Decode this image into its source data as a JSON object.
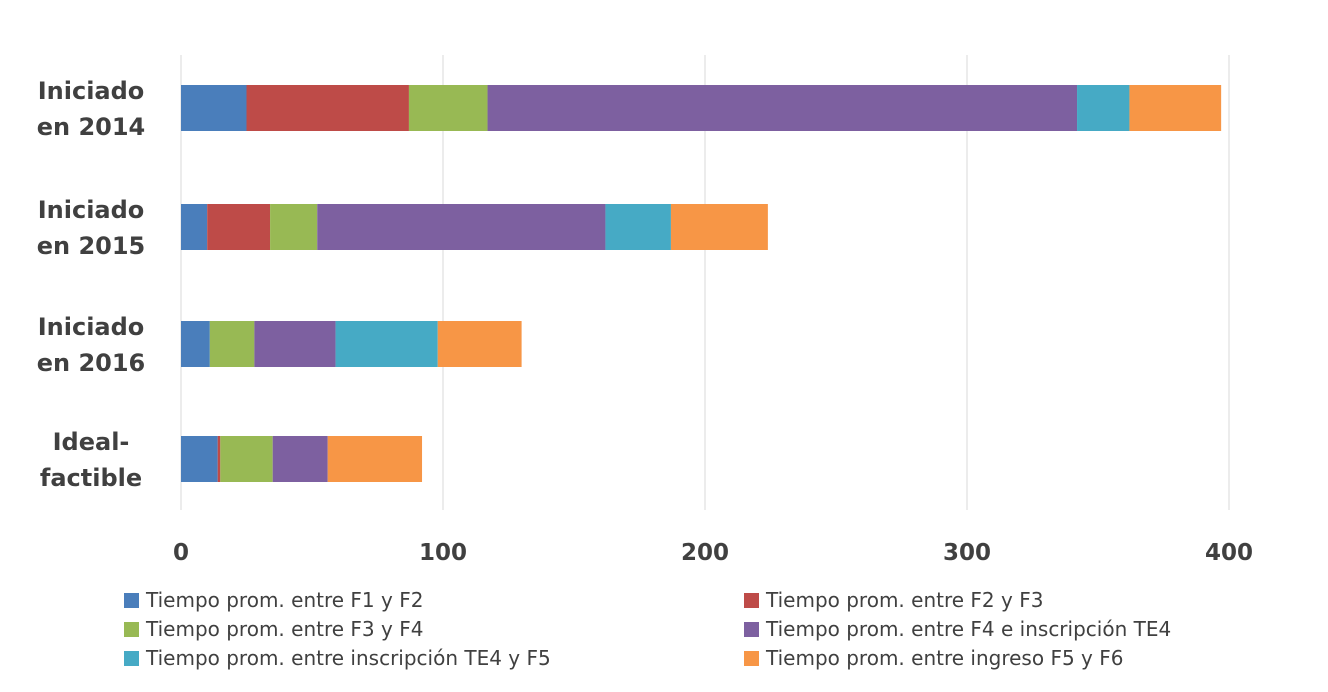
{
  "chart_data": {
    "type": "bar",
    "orientation": "horizontal",
    "stacked": true,
    "title": "",
    "xlabel": "",
    "ylabel": "",
    "xlim": [
      0,
      400
    ],
    "x_ticks": [
      "0",
      "100",
      "200",
      "300",
      "400"
    ],
    "grid": "vertical",
    "legend_position": "bottom",
    "categories": [
      [
        "Iniciado",
        "en 2014"
      ],
      [
        "Iniciado",
        "en 2015"
      ],
      [
        "Iniciado",
        "en 2016"
      ],
      [
        "Ideal-",
        "factible"
      ]
    ],
    "series": [
      {
        "name": "Tiempo prom. entre F1 y F2",
        "color": "#4a7ebb",
        "values": [
          25,
          10,
          11,
          14
        ]
      },
      {
        "name": "Tiempo prom. entre F2 y F3",
        "color": "#be4b48",
        "values": [
          62,
          24,
          0,
          1
        ]
      },
      {
        "name": "Tiempo prom. entre F3 y F4",
        "color": "#98b954",
        "values": [
          30,
          18,
          17,
          20
        ]
      },
      {
        "name": "Tiempo prom. entre F4 e inscripción TE4",
        "color": "#7d60a0",
        "values": [
          225,
          110,
          31,
          21
        ]
      },
      {
        "name": "Tiempo prom. entre  inscripción TE4 y F5",
        "color": "#46aac5",
        "values": [
          20,
          25,
          39,
          0
        ]
      },
      {
        "name": "Tiempo prom. entre  ingreso F5 y F6",
        "color": "#f79646",
        "values": [
          35,
          37,
          32,
          36
        ]
      }
    ]
  }
}
